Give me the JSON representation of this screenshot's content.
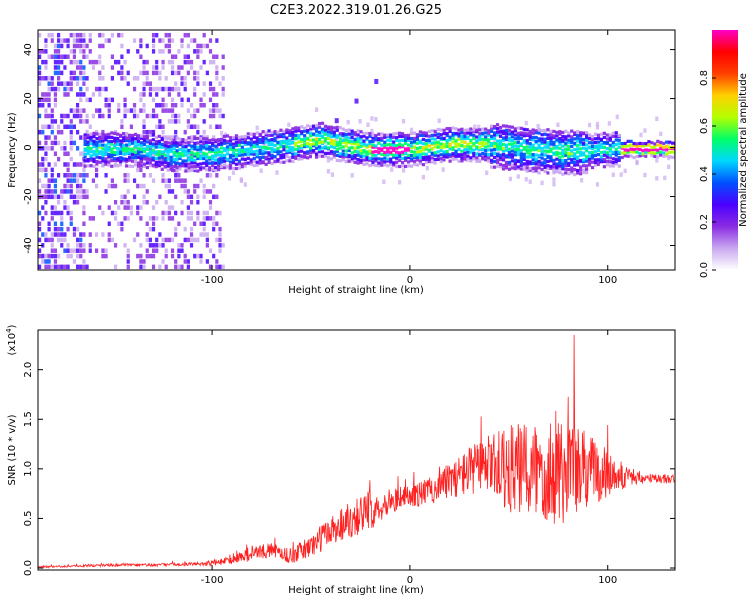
{
  "title": "C2E3.2022.319.01.26.G25",
  "chart_data": [
    {
      "type": "heatmap",
      "xlabel": "Height of straight line (km)",
      "ylabel": "Frequency (Hz)",
      "xlim": [
        -188,
        134
      ],
      "ylim": [
        -50,
        48
      ],
      "xticks": [
        -100,
        0,
        100
      ],
      "xtick_labels": [
        "-100",
        "0",
        "100"
      ],
      "yticks": [
        -40,
        -20,
        0,
        20,
        40
      ],
      "ytick_labels": [
        "-40",
        "-20",
        "0",
        "20",
        "40"
      ],
      "colorbar": {
        "label": "Normalized spectral amplitude",
        "range": [
          0,
          1
        ],
        "ticks": [
          0.0,
          0.2,
          0.4,
          0.6,
          0.8
        ],
        "tick_labels": [
          "0.0",
          "0.2",
          "0.4",
          "0.6",
          "0.8"
        ],
        "colormap": [
          "#ffffff",
          "#c9a8f0",
          "#8a2be2",
          "#4b00ff",
          "#0050ff",
          "#00d8ff",
          "#00ff66",
          "#b4ff00",
          "#ffd000",
          "#ff4000",
          "#ff0000",
          "#ff00c8"
        ]
      },
      "band": {
        "center_x": [
          -160,
          -140,
          -120,
          -100,
          -80,
          -60,
          -45,
          -35,
          -20,
          0,
          20,
          40,
          60,
          80,
          100,
          120,
          134
        ],
        "center_freq": [
          0,
          0,
          -2,
          -2,
          0,
          2,
          4,
          2,
          0,
          0,
          2,
          2,
          0,
          -1,
          0,
          0,
          0
        ]
      },
      "feature": {
        "x": [
          -38,
          -28,
          -18
        ],
        "freq": [
          12,
          20,
          28
        ]
      }
    },
    {
      "type": "line",
      "xlabel": "Height of straight line (km)",
      "ylabel": "SNR (10 * v/v)",
      "exponent_label": "(x10",
      "exponent_value": "4",
      "exponent_close": ")",
      "xlim": [
        -188,
        134
      ],
      "ylim": [
        -0.02,
        2.4
      ],
      "xticks": [
        -100,
        0,
        100
      ],
      "xtick_labels": [
        "-100",
        "0",
        "100"
      ],
      "yticks": [
        0.0,
        0.5,
        1.0,
        1.5,
        2.0
      ],
      "ytick_labels": [
        "0.0",
        "0.5",
        "1.0",
        "1.5",
        "2.0"
      ],
      "color": "#ff2020",
      "series": [
        {
          "x": [
            -188,
            -170,
            -150,
            -130,
            -110,
            -100,
            -90,
            -80,
            -70,
            -60,
            -50,
            -40,
            -30,
            -20,
            -10,
            0,
            10,
            20,
            30,
            40,
            50,
            60,
            70,
            80,
            90,
            100,
            110,
            120,
            134
          ],
          "y": [
            0.01,
            0.02,
            0.03,
            0.03,
            0.04,
            0.05,
            0.08,
            0.15,
            0.18,
            0.12,
            0.22,
            0.38,
            0.5,
            0.58,
            0.68,
            0.72,
            0.78,
            0.88,
            0.98,
            1.05,
            1.0,
            0.97,
            1.02,
            0.98,
            0.98,
            0.95,
            0.92,
            0.9,
            0.9
          ],
          "amplitude": [
            0.01,
            0.01,
            0.015,
            0.015,
            0.015,
            0.03,
            0.04,
            0.08,
            0.07,
            0.08,
            0.12,
            0.16,
            0.2,
            0.2,
            0.12,
            0.12,
            0.14,
            0.18,
            0.25,
            0.3,
            0.45,
            0.5,
            0.6,
            0.55,
            0.4,
            0.25,
            0.1,
            0.05,
            0.05
          ]
        }
      ],
      "peak": {
        "x": 83,
        "y": 2.35
      }
    }
  ]
}
